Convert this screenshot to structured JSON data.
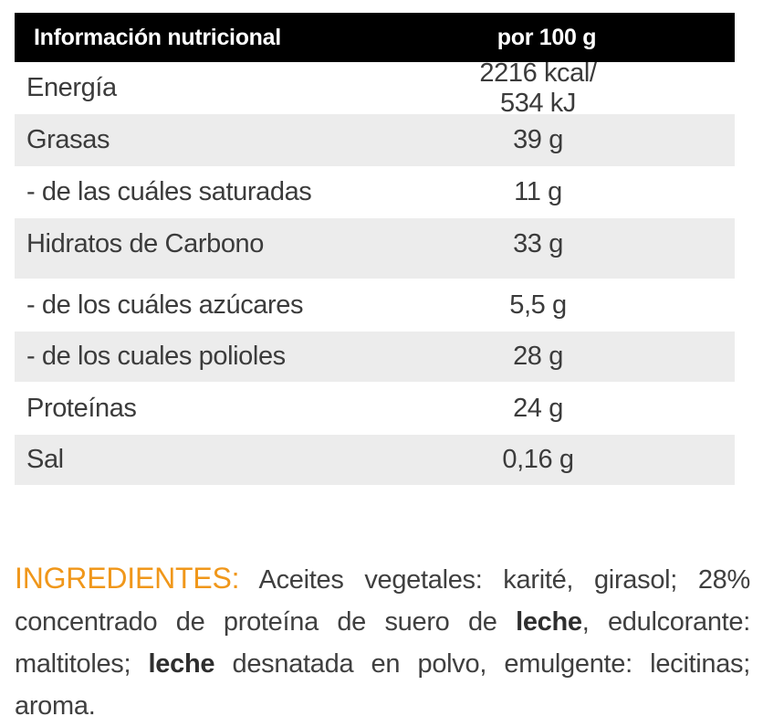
{
  "table": {
    "header": {
      "name": "Información nutricional",
      "value": "por 100 g"
    },
    "rows": [
      {
        "name": "Energía",
        "value": "2216 kcal/ 534 kJ"
      },
      {
        "name": "Grasas",
        "value": "39 g"
      },
      {
        "name": "- de las cuáles saturadas",
        "value": "11 g"
      },
      {
        "name": "Hidratos de Carbono",
        "value": "33 g"
      },
      {
        "name": "- de los cuáles azúcares",
        "value": "5,5 g"
      },
      {
        "name": "- de los cuales polioles",
        "value": "28 g"
      },
      {
        "name": "Proteínas",
        "value": "24 g"
      },
      {
        "name": "Sal",
        "value": "0,16 g"
      }
    ]
  },
  "ingredients": {
    "label": "INGREDIENTES:",
    "part1": " Aceites vegetales: karité, girasol; 28% concentrado de proteína de suero de ",
    "bold1": "leche",
    "part2": ", edulcorante: maltitoles; ",
    "bold2": "leche",
    "part3": " desnatada en polvo, emulgente: lecitinas; aroma."
  },
  "colors": {
    "header_bg": "#000000",
    "row_alt_bg": "#ececec",
    "label_orange": "#f0971a"
  }
}
